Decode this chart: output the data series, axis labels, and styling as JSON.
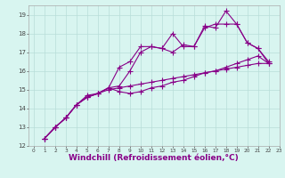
{
  "bg_color": "#d8f5f0",
  "grid_color": "#b8ddd8",
  "line_color": "#880088",
  "marker": "+",
  "markersize": 4,
  "linewidth": 0.8,
  "xlabel": "Windchill (Refroidissement éolien,°C)",
  "xlabel_fontsize": 6.5,
  "xlim": [
    -0.5,
    23
  ],
  "ylim": [
    12,
    19.5
  ],
  "xtick_labels": [
    "0",
    "1",
    "2",
    "3",
    "4",
    "5",
    "6",
    "7",
    "8",
    "9",
    "10",
    "11",
    "12",
    "13",
    "14",
    "15",
    "16",
    "17",
    "18",
    "19",
    "20",
    "21",
    "22",
    "23"
  ],
  "ytick_labels": [
    "12",
    "13",
    "14",
    "15",
    "16",
    "17",
    "18",
    "19"
  ],
  "series": [
    [
      12.4,
      13.0,
      13.5,
      14.2,
      14.7,
      14.8,
      15.1,
      16.2,
      16.5,
      17.3,
      17.3,
      17.2,
      18.0,
      17.3,
      17.3,
      18.4,
      18.3,
      19.2,
      18.5,
      17.5,
      17.2,
      16.4
    ],
    [
      12.4,
      13.0,
      13.5,
      14.2,
      14.6,
      14.8,
      15.1,
      15.2,
      16.0,
      17.0,
      17.3,
      17.2,
      17.0,
      17.4,
      17.3,
      18.3,
      18.5,
      18.5,
      18.5,
      17.5,
      17.2,
      16.5
    ],
    [
      12.4,
      13.0,
      13.5,
      14.2,
      14.6,
      14.8,
      15.1,
      14.9,
      14.8,
      14.9,
      15.1,
      15.2,
      15.4,
      15.5,
      15.7,
      15.9,
      16.0,
      16.2,
      16.4,
      16.6,
      16.8,
      16.4
    ],
    [
      12.4,
      13.0,
      13.5,
      14.2,
      14.6,
      14.8,
      15.0,
      15.1,
      15.2,
      15.3,
      15.4,
      15.5,
      15.6,
      15.7,
      15.8,
      15.9,
      16.0,
      16.1,
      16.2,
      16.3,
      16.4,
      16.4
    ]
  ]
}
